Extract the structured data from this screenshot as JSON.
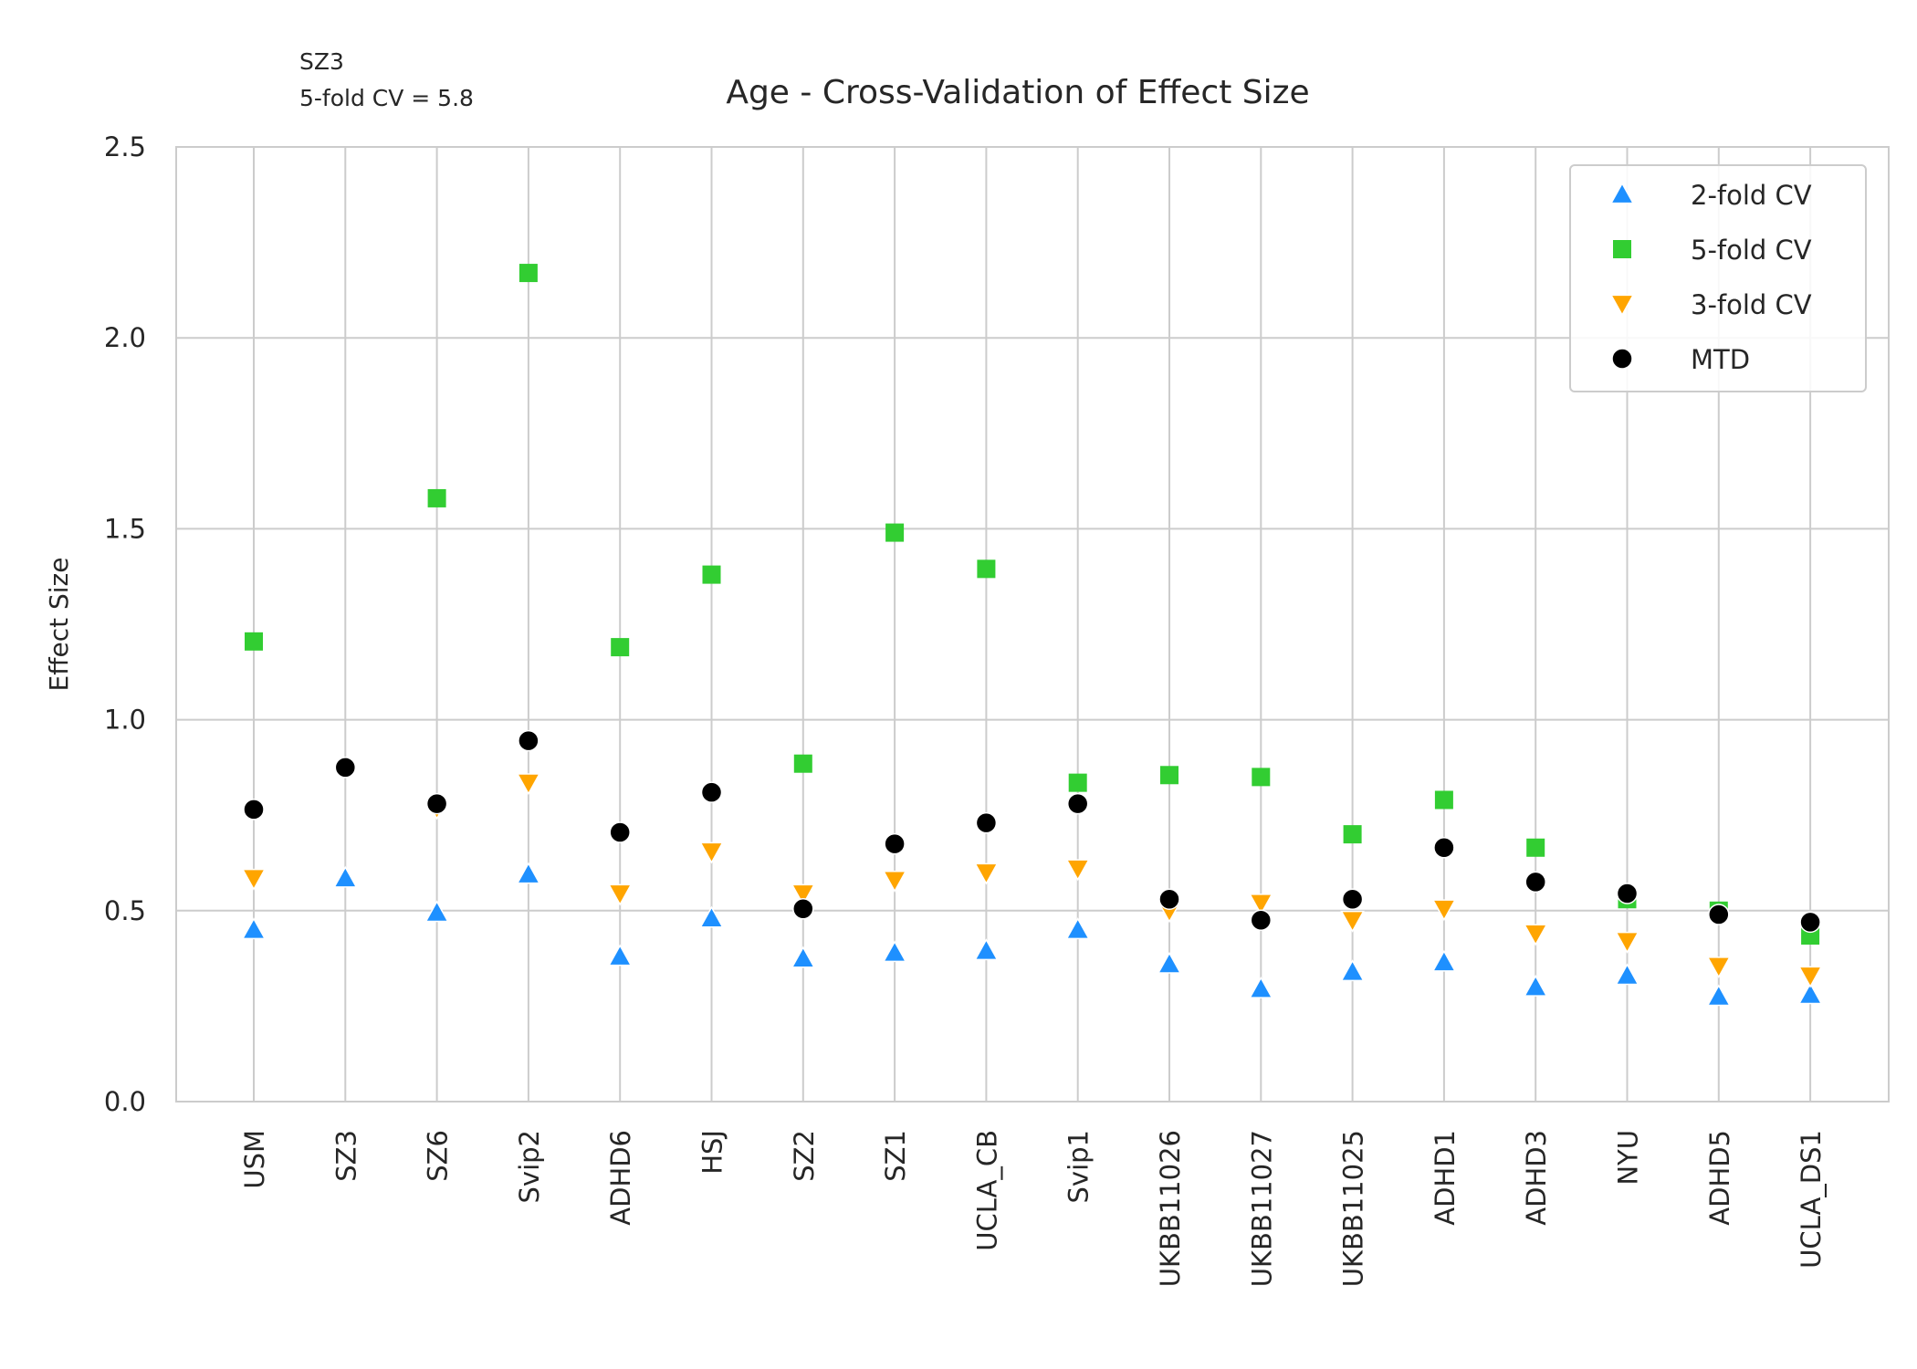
{
  "chart_data": {
    "type": "scatter",
    "title": "Age - Cross-Validation of Effect Size",
    "annotation": [
      "SZ3",
      "5-fold CV = 5.8"
    ],
    "xlabel": "",
    "ylabel": "Effect Size",
    "ylim": [
      0,
      2.5
    ],
    "yticks": [
      "0.0",
      "0.5",
      "1.0",
      "1.5",
      "2.0",
      "2.5"
    ],
    "grid": true,
    "legend_position": "top-right",
    "categories": [
      "USM",
      "SZ3",
      "SZ6",
      "Svip2",
      "ADHD6",
      "HSJ",
      "SZ2",
      "SZ1",
      "UCLA_CB",
      "Svip1",
      "UKBB11026",
      "UKBB11027",
      "UKBB11025",
      "ADHD1",
      "ADHD3",
      "NYU",
      "ADHD5",
      "UCLA_DS1"
    ],
    "series": [
      {
        "name": "2-fold CV",
        "marker": "triangle-up",
        "color": "#1e90ff",
        "values": [
          0.45,
          0.585,
          0.495,
          0.595,
          0.38,
          0.48,
          0.375,
          0.39,
          0.395,
          0.45,
          0.36,
          0.295,
          0.34,
          0.365,
          0.3,
          0.33,
          0.275,
          0.28
        ]
      },
      {
        "name": "5-fold CV",
        "marker": "square",
        "color": "#32cd32",
        "values": [
          1.205,
          null,
          1.58,
          2.17,
          1.19,
          1.38,
          0.885,
          1.49,
          1.395,
          0.835,
          0.855,
          0.85,
          0.7,
          0.79,
          0.665,
          0.53,
          0.5,
          0.435
        ]
      },
      {
        "name": "3-fold CV",
        "marker": "triangle-down",
        "color": "#ffa500",
        "values": [
          0.585,
          null,
          0.77,
          0.835,
          0.545,
          0.655,
          0.545,
          0.58,
          0.6,
          0.61,
          0.5,
          0.52,
          0.475,
          0.505,
          0.44,
          0.42,
          0.355,
          0.33
        ]
      },
      {
        "name": "MTD",
        "marker": "circle",
        "color": "#000000",
        "values": [
          0.765,
          0.875,
          0.78,
          0.945,
          0.705,
          0.81,
          0.505,
          0.675,
          0.73,
          0.78,
          0.53,
          0.475,
          0.53,
          0.665,
          0.575,
          0.545,
          0.49,
          0.47
        ]
      }
    ]
  }
}
